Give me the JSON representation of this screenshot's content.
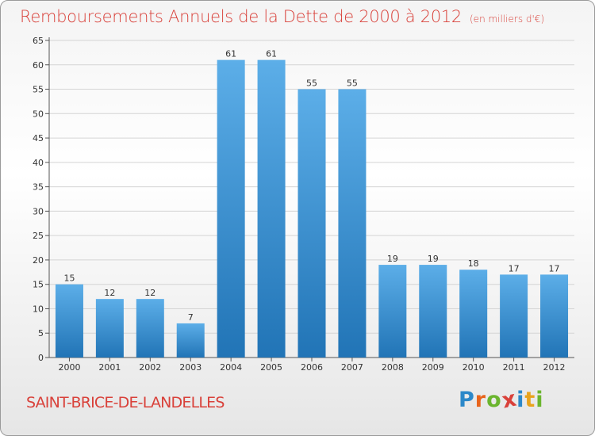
{
  "title": "Remboursements Annuels de la Dette de 2000 à 2012",
  "subtitle": "(en milliers d'€)",
  "commune": "SAINT-BRICE-DE-LANDELLES",
  "brand": {
    "letters": [
      "P",
      "r",
      "o",
      "x",
      "i",
      "t",
      "i"
    ],
    "colors": [
      "#2c88c9",
      "#e8641c",
      "#6bb52e",
      "#d9413a",
      "#2c88c9",
      "#e8a31c",
      "#6bb52e"
    ]
  },
  "colors": {
    "bar_light": "#5caee8",
    "bar_dark": "#2174b6",
    "title": "#d9413a"
  },
  "chart_data": {
    "type": "bar",
    "categories": [
      "2000",
      "2001",
      "2002",
      "2003",
      "2004",
      "2005",
      "2006",
      "2007",
      "2008",
      "2009",
      "2010",
      "2011",
      "2012"
    ],
    "values": [
      15,
      12,
      12,
      7,
      61,
      61,
      55,
      55,
      19,
      19,
      18,
      17,
      17
    ],
    "data_labels": [
      "15",
      "12",
      "12",
      "7",
      "61",
      "61",
      "55",
      "55",
      "19",
      "19",
      "18",
      "17",
      "17"
    ],
    "yticks": [
      "0",
      "5",
      "10",
      "15",
      "20",
      "25",
      "30",
      "35",
      "40",
      "45",
      "50",
      "55",
      "60",
      "65"
    ],
    "ylim": [
      0,
      65
    ],
    "grid": true,
    "xlabel": "",
    "ylabel": ""
  }
}
